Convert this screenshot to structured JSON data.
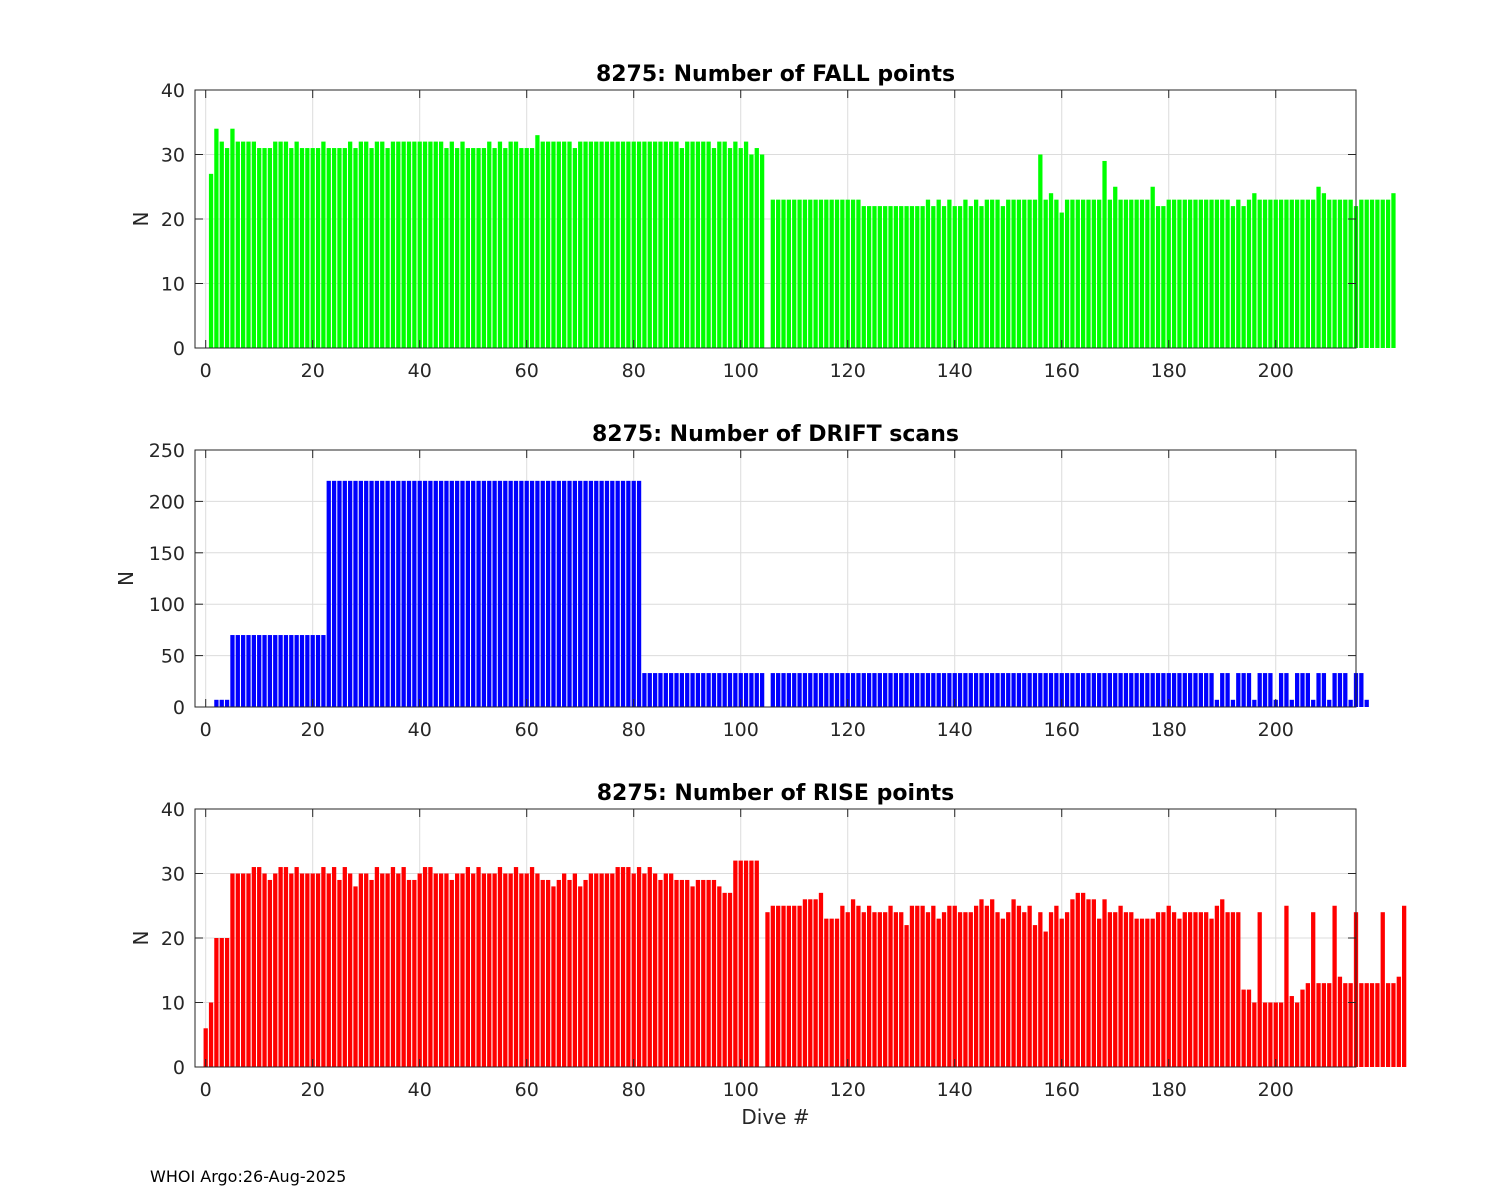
{
  "footer": "WHOI Argo:26-Aug-2025",
  "chart_data": [
    {
      "type": "bar",
      "title": "8275: Number of FALL points",
      "xlabel": "",
      "ylabel": "N",
      "xlim": [
        -2,
        215
      ],
      "ylim": [
        0,
        40
      ],
      "xticks": [
        0,
        20,
        40,
        60,
        80,
        100,
        120,
        140,
        160,
        180,
        200
      ],
      "yticks": [
        0,
        10,
        20,
        30,
        40
      ],
      "grid": true,
      "color": "#00ff00",
      "x_start": 0,
      "values": [
        0,
        27,
        34,
        32,
        31,
        34,
        32,
        32,
        32,
        32,
        31,
        31,
        31,
        32,
        32,
        32,
        31,
        32,
        31,
        31,
        31,
        31,
        32,
        31,
        31,
        31,
        31,
        32,
        31,
        32,
        32,
        31,
        32,
        32,
        31,
        32,
        32,
        32,
        32,
        32,
        32,
        32,
        32,
        32,
        32,
        31,
        32,
        31,
        32,
        31,
        31,
        31,
        31,
        32,
        31,
        32,
        31,
        32,
        32,
        31,
        31,
        31,
        33,
        32,
        32,
        32,
        32,
        32,
        32,
        31,
        32,
        32,
        32,
        32,
        32,
        32,
        32,
        32,
        32,
        32,
        32,
        32,
        32,
        32,
        32,
        32,
        32,
        32,
        32,
        31,
        32,
        32,
        32,
        32,
        32,
        31,
        32,
        32,
        31,
        32,
        31,
        32,
        30,
        31,
        30,
        0,
        23,
        23,
        23,
        23,
        23,
        23,
        23,
        23,
        23,
        23,
        23,
        23,
        23,
        23,
        23,
        23,
        23,
        22,
        22,
        22,
        22,
        22,
        22,
        22,
        22,
        22,
        22,
        22,
        22,
        23,
        22,
        23,
        22,
        23,
        22,
        22,
        23,
        22,
        23,
        22,
        23,
        23,
        23,
        22,
        23,
        23,
        23,
        23,
        23,
        23,
        30,
        23,
        24,
        23,
        21,
        23,
        23,
        23,
        23,
        23,
        23,
        23,
        29,
        23,
        25,
        23,
        23,
        23,
        23,
        23,
        23,
        25,
        22,
        22,
        23,
        23,
        23,
        23,
        23,
        23,
        23,
        23,
        23,
        23,
        23,
        23,
        22,
        23,
        22,
        23,
        24,
        23,
        23,
        23,
        23,
        23,
        23,
        23,
        23,
        23,
        23,
        23,
        25,
        24,
        23,
        23,
        23,
        23,
        23,
        22,
        23,
        23,
        23,
        23,
        23,
        23,
        24
      ]
    },
    {
      "type": "bar",
      "title": "8275: Number of DRIFT scans",
      "xlabel": "",
      "ylabel": "N",
      "xlim": [
        -2,
        215
      ],
      "ylim": [
        0,
        250
      ],
      "xticks": [
        0,
        20,
        40,
        60,
        80,
        100,
        120,
        140,
        160,
        180,
        200
      ],
      "yticks": [
        0,
        50,
        100,
        150,
        200,
        250
      ],
      "grid": true,
      "color": "#0000ff",
      "x_start": 0,
      "values": [
        0,
        0,
        7,
        7,
        7,
        70,
        70,
        70,
        70,
        70,
        70,
        70,
        70,
        70,
        70,
        70,
        70,
        70,
        70,
        70,
        70,
        70,
        70,
        220,
        220,
        220,
        220,
        220,
        220,
        220,
        220,
        220,
        220,
        220,
        220,
        220,
        220,
        220,
        220,
        220,
        220,
        220,
        220,
        220,
        220,
        220,
        220,
        220,
        220,
        220,
        220,
        220,
        220,
        220,
        220,
        220,
        220,
        220,
        220,
        220,
        220,
        220,
        220,
        220,
        220,
        220,
        220,
        220,
        220,
        220,
        220,
        220,
        220,
        220,
        220,
        220,
        220,
        220,
        220,
        220,
        220,
        220,
        33,
        33,
        33,
        33,
        33,
        33,
        33,
        33,
        33,
        33,
        33,
        33,
        33,
        33,
        33,
        33,
        33,
        33,
        33,
        33,
        33,
        33,
        33,
        0,
        33,
        33,
        33,
        33,
        33,
        33,
        33,
        33,
        33,
        33,
        33,
        33,
        33,
        33,
        33,
        33,
        33,
        33,
        33,
        33,
        33,
        33,
        33,
        33,
        33,
        33,
        33,
        33,
        33,
        33,
        33,
        33,
        33,
        33,
        33,
        33,
        33,
        33,
        33,
        33,
        33,
        33,
        33,
        33,
        33,
        33,
        33,
        33,
        33,
        33,
        33,
        33,
        33,
        33,
        33,
        33,
        33,
        33,
        33,
        33,
        33,
        33,
        33,
        33,
        33,
        33,
        33,
        33,
        33,
        33,
        33,
        33,
        33,
        33,
        33,
        33,
        33,
        33,
        33,
        33,
        33,
        33,
        33,
        7,
        33,
        33,
        7,
        33,
        33,
        33,
        7,
        33,
        33,
        33,
        7,
        33,
        33,
        7,
        33,
        33,
        33,
        7,
        33,
        33,
        7,
        33,
        33,
        33,
        7,
        33,
        33,
        7
      ]
    },
    {
      "type": "bar",
      "title": "8275: Number of RISE points",
      "xlabel": "Dive #",
      "ylabel": "N",
      "xlim": [
        -2,
        215
      ],
      "ylim": [
        0,
        40
      ],
      "xticks": [
        0,
        20,
        40,
        60,
        80,
        100,
        120,
        140,
        160,
        180,
        200
      ],
      "yticks": [
        0,
        10,
        20,
        30,
        40
      ],
      "grid": true,
      "color": "#ff0000",
      "x_start": 0,
      "values": [
        6,
        10,
        20,
        20,
        20,
        30,
        30,
        30,
        30,
        31,
        31,
        30,
        29,
        30,
        31,
        31,
        30,
        31,
        30,
        30,
        30,
        30,
        31,
        30,
        31,
        29,
        31,
        30,
        28,
        30,
        30,
        29,
        31,
        30,
        30,
        31,
        30,
        31,
        29,
        29,
        30,
        31,
        31,
        30,
        30,
        30,
        29,
        30,
        30,
        31,
        30,
        31,
        30,
        30,
        30,
        31,
        30,
        30,
        31,
        30,
        30,
        31,
        30,
        29,
        29,
        28,
        29,
        30,
        29,
        30,
        28,
        29,
        30,
        30,
        30,
        30,
        30,
        31,
        31,
        31,
        30,
        31,
        30,
        31,
        30,
        29,
        30,
        30,
        29,
        29,
        29,
        28,
        29,
        29,
        29,
        29,
        28,
        27,
        27,
        32,
        32,
        32,
        32,
        32,
        0,
        24,
        25,
        25,
        25,
        25,
        25,
        25,
        26,
        26,
        26,
        27,
        23,
        23,
        23,
        25,
        24,
        26,
        25,
        24,
        25,
        24,
        24,
        24,
        25,
        24,
        24,
        22,
        25,
        25,
        25,
        24,
        25,
        23,
        24,
        25,
        25,
        24,
        24,
        24,
        25,
        26,
        25,
        26,
        24,
        23,
        24,
        26,
        25,
        24,
        25,
        22,
        24,
        21,
        24,
        25,
        23,
        24,
        26,
        27,
        27,
        26,
        26,
        23,
        26,
        24,
        24,
        25,
        24,
        24,
        23,
        23,
        23,
        23,
        24,
        24,
        25,
        24,
        23,
        24,
        24,
        24,
        24,
        24,
        23,
        25,
        26,
        24,
        24,
        24,
        12,
        12,
        10,
        24,
        10,
        10,
        10,
        10,
        25,
        11,
        10,
        12,
        13,
        24,
        13,
        13,
        13,
        25,
        14,
        13,
        13,
        24,
        13,
        13,
        13,
        13,
        24,
        13,
        13,
        14,
        25
      ]
    }
  ]
}
